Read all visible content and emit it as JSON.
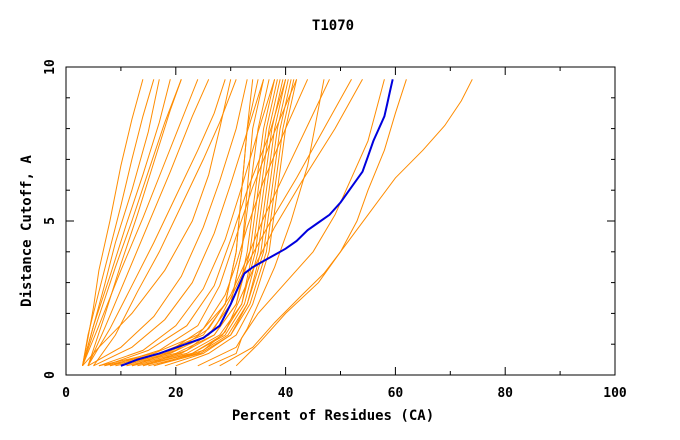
{
  "chart_data": {
    "type": "line",
    "title": "T1070",
    "xlabel": "Percent of Residues (CA)",
    "ylabel": "Distance Cutoff, A",
    "xlim": [
      0,
      100
    ],
    "ylim": [
      0,
      10
    ],
    "x_ticks": [
      "0",
      "20",
      "40",
      "60",
      "80",
      "100"
    ],
    "y_ticks": [
      "0",
      "5",
      "10"
    ],
    "grid": false,
    "colors": {
      "highlight": "#0000dd",
      "others": "#ff8c00",
      "axis": "#000000"
    },
    "highlight_series": {
      "x": [
        10,
        13,
        17,
        21,
        25,
        28,
        30,
        31.5,
        32.5,
        34,
        36,
        38,
        40,
        42,
        44,
        46,
        48,
        50,
        52,
        54,
        55,
        56,
        57,
        58,
        58.5,
        59,
        59.5
      ],
      "y": [
        0.3,
        0.5,
        0.7,
        0.95,
        1.2,
        1.6,
        2.3,
        2.9,
        3.3,
        3.5,
        3.7,
        3.9,
        4.1,
        4.35,
        4.7,
        4.95,
        5.2,
        5.6,
        6.1,
        6.6,
        7.1,
        7.6,
        8.0,
        8.4,
        8.8,
        9.2,
        9.6
      ]
    },
    "other_series": [
      {
        "x": [
          3,
          4,
          5,
          6,
          8,
          10,
          12,
          14
        ],
        "y": [
          0.3,
          1.2,
          2.2,
          3.4,
          5.0,
          6.8,
          8.3,
          9.6
        ]
      },
      {
        "x": [
          3,
          4,
          6,
          8,
          10,
          12,
          14,
          16
        ],
        "y": [
          0.3,
          1.3,
          2.7,
          4.1,
          5.5,
          7.0,
          8.4,
          9.6
        ]
      },
      {
        "x": [
          3,
          5,
          7,
          9,
          12,
          15,
          17
        ],
        "y": [
          0.3,
          1.6,
          2.9,
          4.3,
          6.0,
          7.9,
          9.6
        ]
      },
      {
        "x": [
          3,
          5,
          8,
          11,
          14,
          17,
          19
        ],
        "y": [
          0.3,
          1.6,
          3.2,
          4.9,
          6.5,
          8.2,
          9.6
        ]
      },
      {
        "x": [
          3,
          6,
          9,
          12,
          15,
          18,
          21
        ],
        "y": [
          0.3,
          1.9,
          3.5,
          5.0,
          6.6,
          8.2,
          9.6
        ]
      },
      {
        "x": [
          3,
          6,
          10,
          14,
          18,
          22,
          24
        ],
        "y": [
          0.3,
          1.6,
          3.4,
          5.1,
          6.9,
          8.7,
          9.6
        ]
      },
      {
        "x": [
          4,
          7,
          11,
          15,
          19,
          23,
          26
        ],
        "y": [
          0.3,
          1.5,
          3.2,
          4.9,
          6.6,
          8.4,
          9.6
        ]
      },
      {
        "x": [
          4,
          8,
          12,
          16,
          20,
          24,
          27,
          29
        ],
        "y": [
          0.3,
          1.5,
          2.9,
          4.3,
          5.8,
          7.3,
          8.5,
          9.6
        ]
      },
      {
        "x": [
          4,
          7,
          10,
          13,
          16,
          19,
          21
        ],
        "y": [
          0.3,
          1.9,
          3.6,
          5.2,
          6.9,
          8.6,
          9.6
        ]
      },
      {
        "x": [
          5,
          9,
          13,
          17,
          21,
          25,
          28,
          31
        ],
        "y": [
          0.3,
          1.3,
          2.7,
          4.0,
          5.5,
          7.0,
          8.2,
          9.6
        ]
      },
      {
        "x": [
          3,
          6,
          12,
          18,
          23,
          26,
          28,
          30
        ],
        "y": [
          0.3,
          0.9,
          2.0,
          3.4,
          5.0,
          6.5,
          8.0,
          9.6
        ]
      },
      {
        "x": [
          4,
          10,
          16,
          21,
          25,
          28,
          31,
          33
        ],
        "y": [
          0.3,
          0.9,
          1.9,
          3.2,
          4.8,
          6.3,
          8.0,
          9.6
        ]
      },
      {
        "x": [
          5,
          12,
          18,
          23,
          27,
          30,
          33,
          36
        ],
        "y": [
          0.3,
          0.9,
          1.8,
          3.0,
          4.6,
          6.2,
          7.9,
          9.6
        ]
      },
      {
        "x": [
          6,
          14,
          20,
          25,
          29,
          32,
          35,
          38
        ],
        "y": [
          0.3,
          0.8,
          1.6,
          2.8,
          4.4,
          6.1,
          7.9,
          9.6
        ]
      },
      {
        "x": [
          7,
          15,
          22,
          27,
          30,
          33,
          37,
          40
        ],
        "y": [
          0.3,
          0.8,
          1.6,
          2.9,
          4.4,
          6.0,
          7.8,
          9.6
        ]
      },
      {
        "x": [
          8,
          17,
          24,
          28,
          31,
          34,
          38,
          42
        ],
        "y": [
          0.3,
          0.8,
          1.6,
          2.9,
          4.5,
          6.1,
          7.9,
          9.6
        ]
      },
      {
        "x": [
          10,
          19,
          25,
          29,
          31,
          33,
          36,
          40,
          44
        ],
        "y": [
          0.3,
          0.8,
          1.5,
          2.6,
          3.6,
          4.8,
          6.3,
          8.0,
          9.6
        ]
      },
      {
        "x": [
          12,
          20,
          26,
          30,
          33,
          36,
          40,
          44,
          48
        ],
        "y": [
          0.3,
          0.8,
          1.5,
          2.6,
          3.8,
          5.1,
          6.6,
          8.1,
          9.6
        ]
      },
      {
        "x": [
          14,
          22,
          27,
          30,
          33,
          37,
          42,
          47,
          52
        ],
        "y": [
          0.3,
          0.8,
          1.5,
          2.5,
          3.6,
          4.9,
          6.4,
          8.0,
          9.6
        ]
      },
      {
        "x": [
          6,
          16,
          24,
          29,
          31,
          32,
          33,
          34
        ],
        "y": [
          0.3,
          0.7,
          1.3,
          2.3,
          4.0,
          6.0,
          8.0,
          9.6
        ]
      },
      {
        "x": [
          7,
          17,
          25,
          29,
          31,
          32,
          33,
          35
        ],
        "y": [
          0.3,
          0.7,
          1.3,
          2.3,
          4.0,
          6.0,
          8.0,
          9.6
        ]
      },
      {
        "x": [
          8,
          18,
          26,
          30,
          32,
          33,
          34,
          36
        ],
        "y": [
          0.3,
          0.7,
          1.3,
          2.3,
          4.0,
          6.0,
          8.0,
          9.6
        ]
      },
      {
        "x": [
          9,
          19,
          26,
          30,
          32,
          33.5,
          35,
          37
        ],
        "y": [
          0.3,
          0.7,
          1.3,
          2.3,
          4.0,
          6.0,
          8.0,
          9.6
        ]
      },
      {
        "x": [
          10,
          20,
          27,
          31,
          33,
          34.5,
          36,
          38
        ],
        "y": [
          0.3,
          0.7,
          1.3,
          2.3,
          4.0,
          6.0,
          8.0,
          9.6
        ]
      },
      {
        "x": [
          11,
          21,
          27,
          31,
          33.5,
          35,
          36.5,
          38.5
        ],
        "y": [
          0.3,
          0.7,
          1.3,
          2.3,
          4.0,
          6.0,
          8.0,
          9.6
        ]
      },
      {
        "x": [
          12,
          22,
          28,
          32,
          34,
          35.5,
          37,
          39
        ],
        "y": [
          0.3,
          0.7,
          1.3,
          2.3,
          4.0,
          6.0,
          8.0,
          9.6
        ]
      },
      {
        "x": [
          13,
          23,
          28.5,
          32,
          34.5,
          36,
          37.5,
          39.5
        ],
        "y": [
          0.3,
          0.7,
          1.3,
          2.3,
          4.0,
          6.0,
          8.0,
          9.6
        ]
      },
      {
        "x": [
          14,
          23,
          29,
          32.5,
          35,
          36.5,
          38,
          40
        ],
        "y": [
          0.3,
          0.7,
          1.3,
          2.3,
          4.0,
          6.0,
          8.0,
          9.6
        ]
      },
      {
        "x": [
          15,
          24,
          29.5,
          33,
          35.5,
          37,
          38.5,
          40.5
        ],
        "y": [
          0.3,
          0.7,
          1.3,
          2.3,
          4.0,
          6.0,
          8.0,
          9.6
        ]
      },
      {
        "x": [
          16,
          24.5,
          30,
          33,
          36,
          37.5,
          39,
          41
        ],
        "y": [
          0.3,
          0.7,
          1.3,
          2.3,
          4.0,
          6.0,
          8.0,
          9.6
        ]
      },
      {
        "x": [
          18,
          25,
          30,
          33.5,
          36.5,
          38,
          39.5,
          41.5
        ],
        "y": [
          0.3,
          0.7,
          1.3,
          2.3,
          4.0,
          6.0,
          8.0,
          9.6
        ]
      },
      {
        "x": [
          20,
          26,
          31,
          34,
          37,
          38.5,
          40,
          42
        ],
        "y": [
          0.3,
          0.7,
          1.3,
          2.3,
          4.0,
          6.0,
          8.0,
          9.6
        ]
      },
      {
        "x": [
          24,
          31,
          33,
          35,
          38,
          41,
          44,
          47
        ],
        "y": [
          0.3,
          0.9,
          1.5,
          2.3,
          3.5,
          5.0,
          6.8,
          9.6
        ]
      },
      {
        "x": [
          16,
          25,
          29,
          31,
          34,
          38,
          43,
          49,
          54
        ],
        "y": [
          0.3,
          0.8,
          1.4,
          2.2,
          3.4,
          4.8,
          6.3,
          8.0,
          9.6
        ]
      },
      {
        "x": [
          26,
          31,
          32,
          35,
          40,
          45,
          49,
          52,
          55,
          56.5,
          58
        ],
        "y": [
          0.3,
          0.7,
          1.2,
          2.0,
          3.0,
          4.0,
          5.2,
          6.4,
          7.6,
          8.6,
          9.6
        ]
      },
      {
        "x": [
          28,
          34,
          38,
          43,
          47,
          50,
          53,
          55,
          58,
          60,
          62
        ],
        "y": [
          0.3,
          0.9,
          1.7,
          2.6,
          3.3,
          4.0,
          5.0,
          6.0,
          7.3,
          8.5,
          9.6
        ]
      },
      {
        "x": [
          31,
          35,
          40,
          46,
          50,
          55,
          60,
          65,
          69,
          72,
          74
        ],
        "y": [
          0.3,
          1.0,
          2.0,
          3.0,
          4.0,
          5.2,
          6.4,
          7.3,
          8.1,
          8.9,
          9.6
        ]
      }
    ]
  }
}
